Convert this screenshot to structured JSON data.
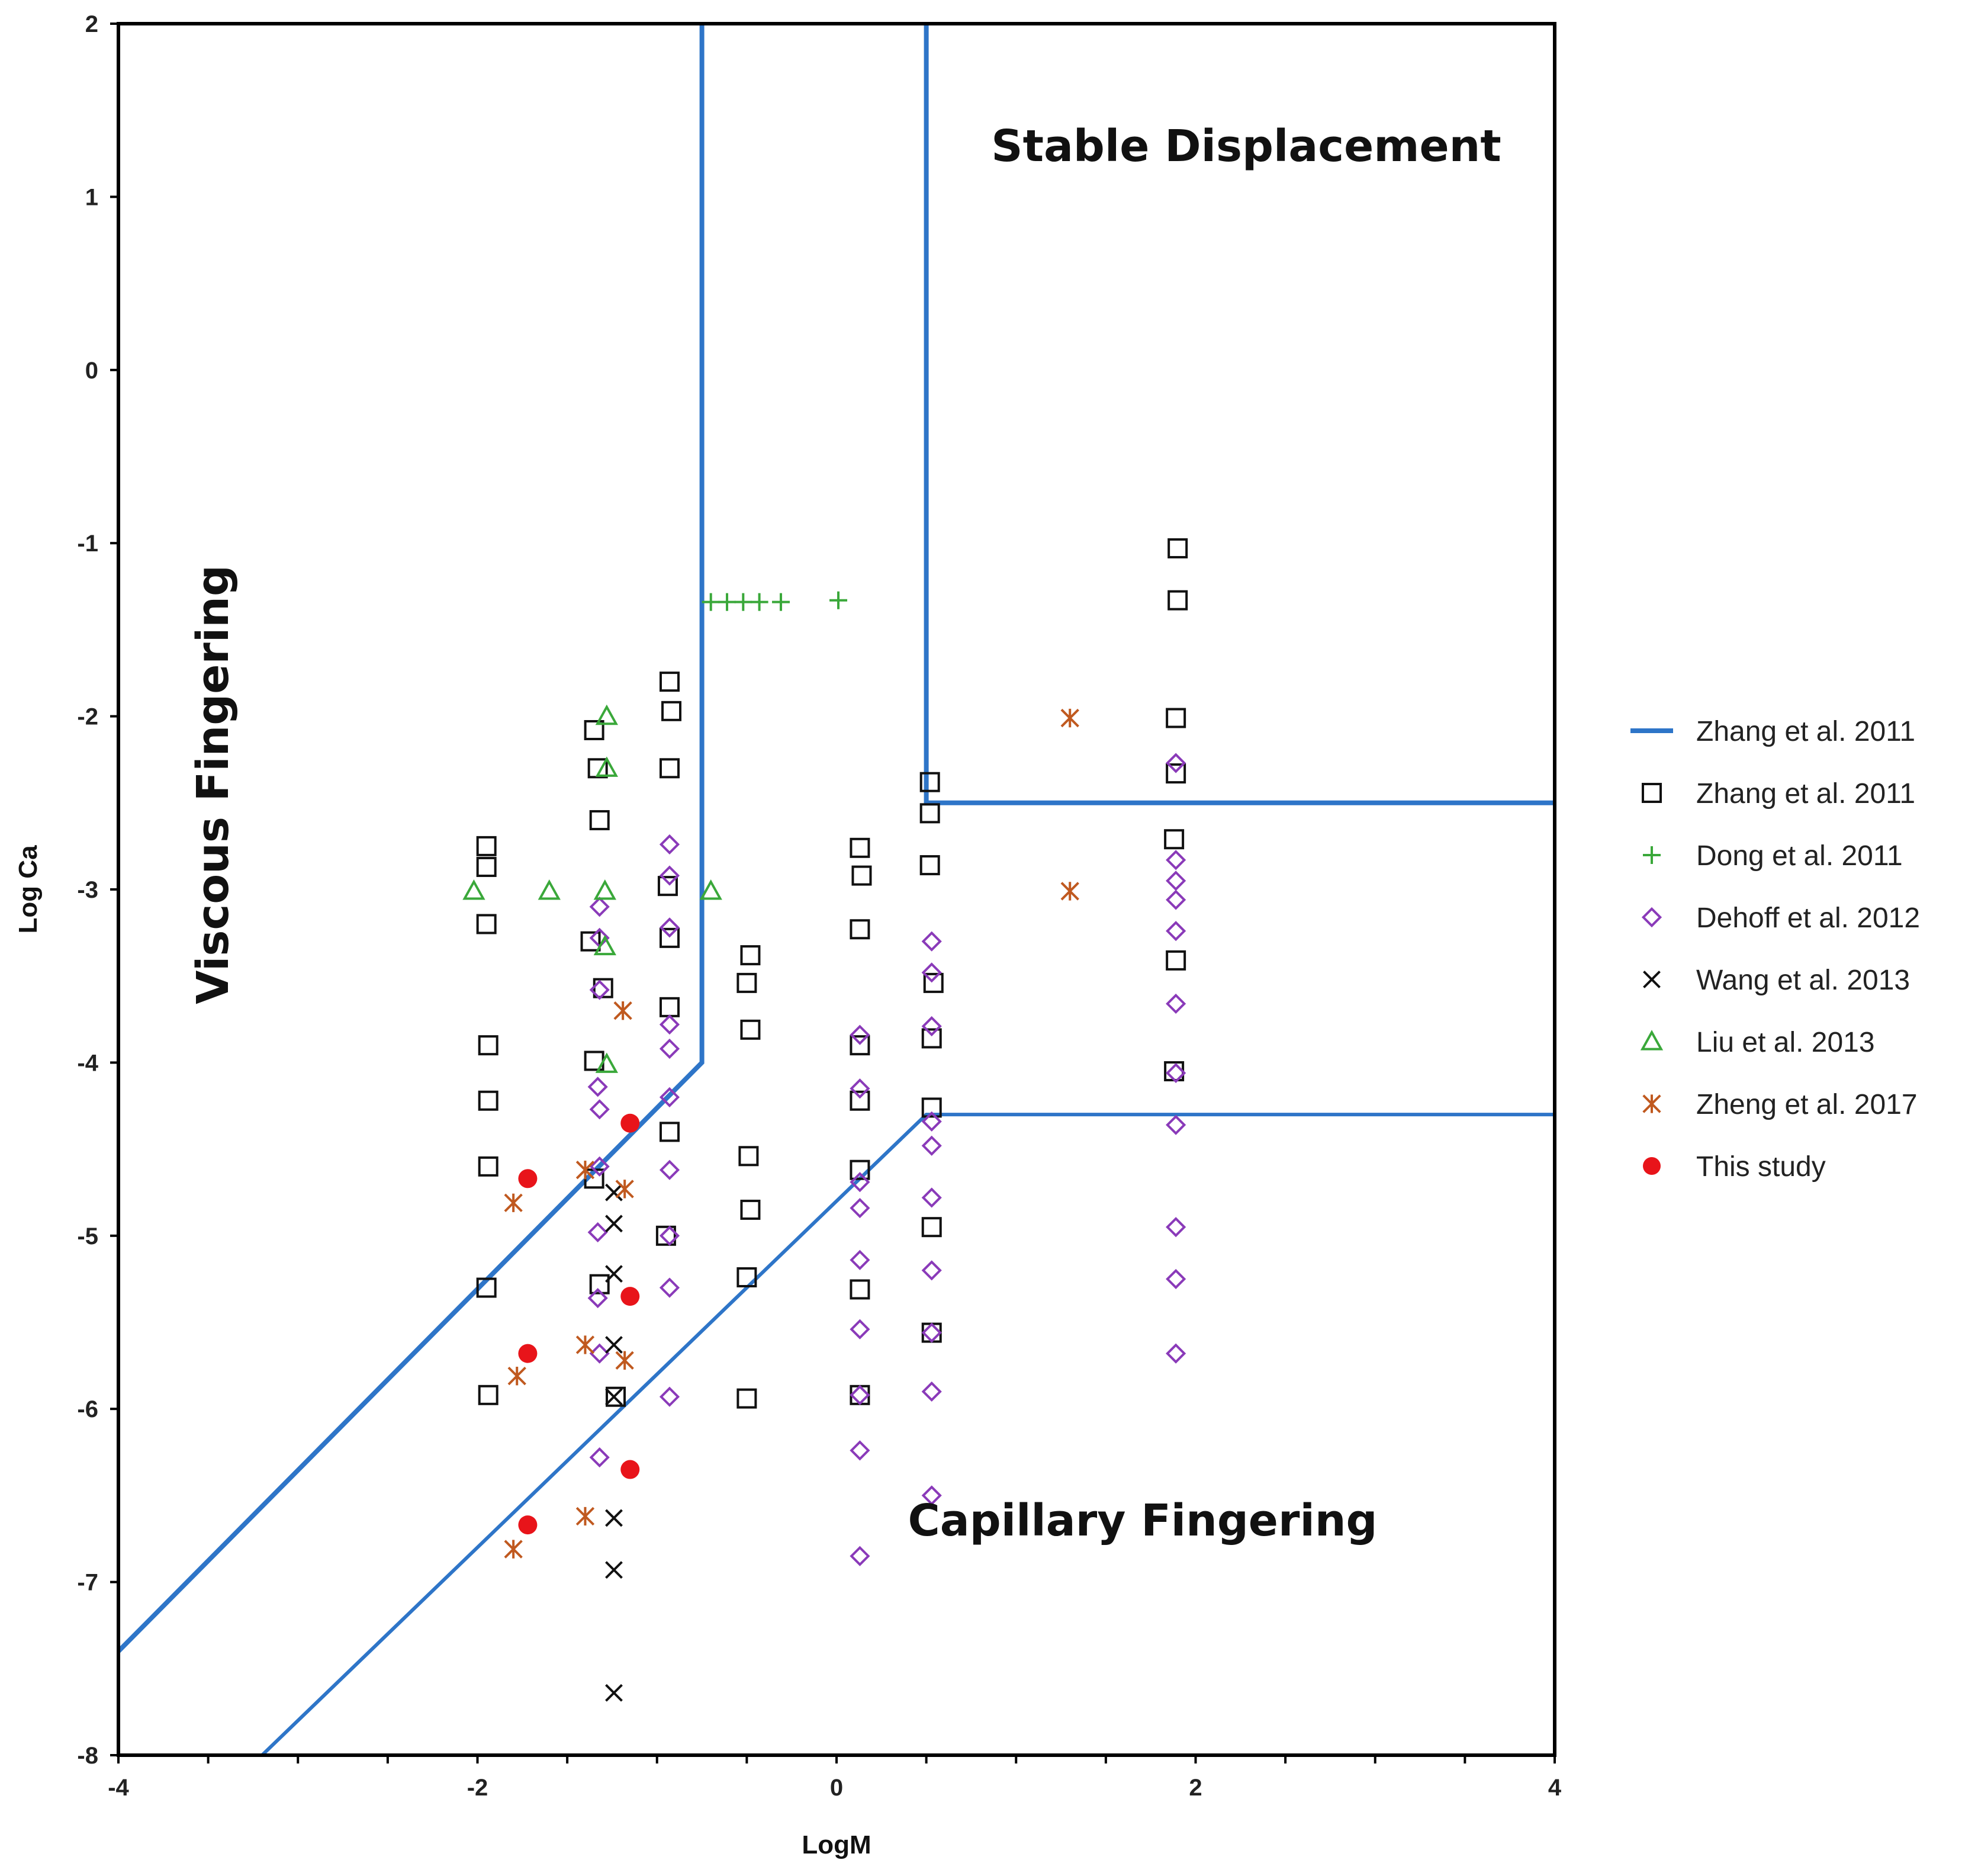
{
  "chart_data": {
    "type": "scatter",
    "title": "",
    "xlabel": "LogM",
    "ylabel": "Log Ca",
    "xlim": [
      -4,
      4
    ],
    "ylim": [
      -8,
      2
    ],
    "xticks": [
      "-4",
      "-2",
      "0",
      "2",
      "4"
    ],
    "yticks": [
      "2",
      "1",
      "0",
      "-1",
      "-2",
      "-3",
      "-4",
      "-5",
      "-6",
      "-7",
      "-8"
    ],
    "grid": false,
    "legend_position": "right",
    "annotations": [
      {
        "text": "Stable Displacement",
        "x": 2.3,
        "y": 1.28
      },
      {
        "text": "Viscous Fingering",
        "x": -3.4,
        "y": -2.5,
        "rotation": -90
      },
      {
        "text": "Capillary Fingering",
        "x": 1.7,
        "y": -6.65
      }
    ],
    "boundaries": {
      "name": "Zhang et al. 2011",
      "color": "#2e75c8",
      "lines": [
        {
          "x": [
            -4,
            -0.75,
            -0.75
          ],
          "y": [
            -7.4,
            -4,
            2
          ]
        },
        {
          "x": [
            0.5,
            0.5,
            4
          ],
          "y": [
            2,
            -2.5,
            -2.5
          ]
        },
        {
          "x": [
            -3.2,
            0.5,
            4
          ],
          "y": [
            -8,
            -4.3,
            -4.3
          ]
        }
      ]
    },
    "series": [
      {
        "name": "Zhang et al. 2011",
        "marker": "square",
        "color": "#111111",
        "points": [
          [
            -1.95,
            -2.75
          ],
          [
            -1.95,
            -2.87
          ],
          [
            -1.95,
            -3.2
          ],
          [
            -1.94,
            -3.9
          ],
          [
            -1.94,
            -4.22
          ],
          [
            -1.94,
            -4.6
          ],
          [
            -1.95,
            -5.3
          ],
          [
            -1.94,
            -5.92
          ],
          [
            -1.35,
            -2.08
          ],
          [
            -1.33,
            -2.3
          ],
          [
            -1.32,
            -2.6
          ],
          [
            -1.37,
            -3.3
          ],
          [
            -1.3,
            -3.57
          ],
          [
            -1.35,
            -3.99
          ],
          [
            -1.35,
            -4.67
          ],
          [
            -1.32,
            -5.28
          ],
          [
            -1.23,
            -5.93
          ],
          [
            -0.93,
            -1.8
          ],
          [
            -0.92,
            -1.97
          ],
          [
            -0.93,
            -2.3
          ],
          [
            -0.94,
            -2.98
          ],
          [
            -0.93,
            -3.28
          ],
          [
            -0.93,
            -3.68
          ],
          [
            -0.93,
            -4.4
          ],
          [
            -0.95,
            -5.0
          ],
          [
            -0.48,
            -3.38
          ],
          [
            -0.5,
            -3.54
          ],
          [
            -0.48,
            -3.81
          ],
          [
            -0.49,
            -4.54
          ],
          [
            -0.48,
            -4.85
          ],
          [
            -0.5,
            -5.24
          ],
          [
            -0.5,
            -5.94
          ],
          [
            0.13,
            -2.76
          ],
          [
            0.14,
            -2.92
          ],
          [
            0.13,
            -3.23
          ],
          [
            0.13,
            -3.9
          ],
          [
            0.13,
            -4.22
          ],
          [
            0.13,
            -4.62
          ],
          [
            0.13,
            -5.31
          ],
          [
            0.13,
            -5.92
          ],
          [
            0.52,
            -2.38
          ],
          [
            0.52,
            -2.56
          ],
          [
            0.52,
            -2.86
          ],
          [
            0.54,
            -3.54
          ],
          [
            0.53,
            -3.86
          ],
          [
            0.53,
            -4.26
          ],
          [
            0.53,
            -4.95
          ],
          [
            0.53,
            -5.56
          ],
          [
            1.9,
            -1.03
          ],
          [
            1.9,
            -1.33
          ],
          [
            1.89,
            -2.01
          ],
          [
            1.89,
            -2.33
          ],
          [
            1.88,
            -2.71
          ],
          [
            1.89,
            -3.41
          ],
          [
            1.88,
            -4.05
          ]
        ]
      },
      {
        "name": "Dong et al. 2011",
        "marker": "plus",
        "color": "#3aa83a",
        "points": [
          [
            -0.7,
            -1.34
          ],
          [
            -0.61,
            -1.34
          ],
          [
            -0.52,
            -1.34
          ],
          [
            -0.43,
            -1.34
          ],
          [
            -0.31,
            -1.34
          ],
          [
            0.01,
            -1.33
          ]
        ]
      },
      {
        "name": "Dehoff et al. 2012",
        "marker": "diamond",
        "color": "#8a3ab9",
        "points": [
          [
            -1.32,
            -3.1
          ],
          [
            -1.32,
            -3.28
          ],
          [
            -1.32,
            -3.58
          ],
          [
            -1.33,
            -4.14
          ],
          [
            -1.32,
            -4.27
          ],
          [
            -1.32,
            -4.6
          ],
          [
            -1.33,
            -4.98
          ],
          [
            -1.33,
            -5.36
          ],
          [
            -1.32,
            -5.68
          ],
          [
            -1.32,
            -6.28
          ],
          [
            -0.93,
            -2.74
          ],
          [
            -0.93,
            -2.92
          ],
          [
            -0.93,
            -3.22
          ],
          [
            -0.93,
            -3.78
          ],
          [
            -0.93,
            -3.92
          ],
          [
            -0.93,
            -4.2
          ],
          [
            -0.93,
            -4.62
          ],
          [
            -0.93,
            -5.0
          ],
          [
            -0.93,
            -5.3
          ],
          [
            -0.93,
            -5.93
          ],
          [
            0.13,
            -3.84
          ],
          [
            0.13,
            -4.15
          ],
          [
            0.13,
            -4.69
          ],
          [
            0.13,
            -4.84
          ],
          [
            0.13,
            -5.14
          ],
          [
            0.13,
            -5.54
          ],
          [
            0.13,
            -5.92
          ],
          [
            0.13,
            -6.24
          ],
          [
            0.13,
            -6.85
          ],
          [
            0.53,
            -3.3
          ],
          [
            0.53,
            -3.48
          ],
          [
            0.53,
            -3.79
          ],
          [
            0.53,
            -4.34
          ],
          [
            0.53,
            -4.48
          ],
          [
            0.53,
            -4.78
          ],
          [
            0.53,
            -5.2
          ],
          [
            0.53,
            -5.56
          ],
          [
            0.53,
            -5.9
          ],
          [
            0.53,
            -6.5
          ],
          [
            1.89,
            -2.27
          ],
          [
            1.89,
            -2.83
          ],
          [
            1.89,
            -2.95
          ],
          [
            1.89,
            -3.06
          ],
          [
            1.89,
            -3.24
          ],
          [
            1.89,
            -3.66
          ],
          [
            1.89,
            -4.06
          ],
          [
            1.89,
            -4.36
          ],
          [
            1.89,
            -4.95
          ],
          [
            1.89,
            -5.25
          ],
          [
            1.89,
            -5.68
          ]
        ]
      },
      {
        "name": "Wang et al. 2013",
        "marker": "x",
        "color": "#111111",
        "points": [
          [
            -1.24,
            -4.75
          ],
          [
            -1.24,
            -4.93
          ],
          [
            -1.24,
            -5.22
          ],
          [
            -1.24,
            -5.63
          ],
          [
            -1.24,
            -5.93
          ],
          [
            -1.24,
            -6.63
          ],
          [
            -1.24,
            -6.93
          ],
          [
            -1.24,
            -7.64
          ]
        ]
      },
      {
        "name": "Liu et al. 2013",
        "marker": "triangle",
        "color": "#3aa83a",
        "points": [
          [
            -2.02,
            -3.01
          ],
          [
            -1.6,
            -3.01
          ],
          [
            -1.28,
            -2.0
          ],
          [
            -1.28,
            -2.3
          ],
          [
            -1.29,
            -3.01
          ],
          [
            -1.29,
            -3.33
          ],
          [
            -1.28,
            -4.01
          ],
          [
            -0.7,
            -3.01
          ]
        ]
      },
      {
        "name": "Zheng et al. 2017",
        "marker": "asterisk",
        "color": "#c0591f",
        "points": [
          [
            -1.8,
            -4.81
          ],
          [
            -1.78,
            -5.81
          ],
          [
            -1.8,
            -6.81
          ],
          [
            -1.4,
            -4.62
          ],
          [
            -1.4,
            -5.63
          ],
          [
            -1.4,
            -6.62
          ],
          [
            -1.19,
            -3.7
          ],
          [
            -1.18,
            -4.73
          ],
          [
            -1.18,
            -5.72
          ],
          [
            1.3,
            -2.01
          ],
          [
            1.3,
            -3.01
          ]
        ]
      },
      {
        "name": "This study",
        "marker": "circle",
        "color": "#e8141a",
        "points": [
          [
            -1.72,
            -4.67
          ],
          [
            -1.72,
            -5.68
          ],
          [
            -1.72,
            -6.67
          ],
          [
            -1.15,
            -4.35
          ],
          [
            -1.15,
            -5.35
          ],
          [
            -1.15,
            -6.35
          ]
        ]
      }
    ],
    "legend": [
      {
        "label": "Zhang et al. 2011",
        "marker": "line",
        "color": "#2e75c8"
      },
      {
        "label": "Zhang et al. 2011",
        "marker": "square",
        "color": "#111111"
      },
      {
        "label": "Dong et al. 2011",
        "marker": "plus",
        "color": "#3aa83a"
      },
      {
        "label": "Dehoff et al. 2012",
        "marker": "diamond",
        "color": "#8a3ab9"
      },
      {
        "label": "Wang et al. 2013",
        "marker": "x",
        "color": "#111111"
      },
      {
        "label": "Liu et al. 2013",
        "marker": "triangle",
        "color": "#3aa83a"
      },
      {
        "label": "Zheng et al. 2017",
        "marker": "asterisk",
        "color": "#c0591f"
      },
      {
        "label": "This study",
        "marker": "circle",
        "color": "#e8141a"
      }
    ]
  }
}
